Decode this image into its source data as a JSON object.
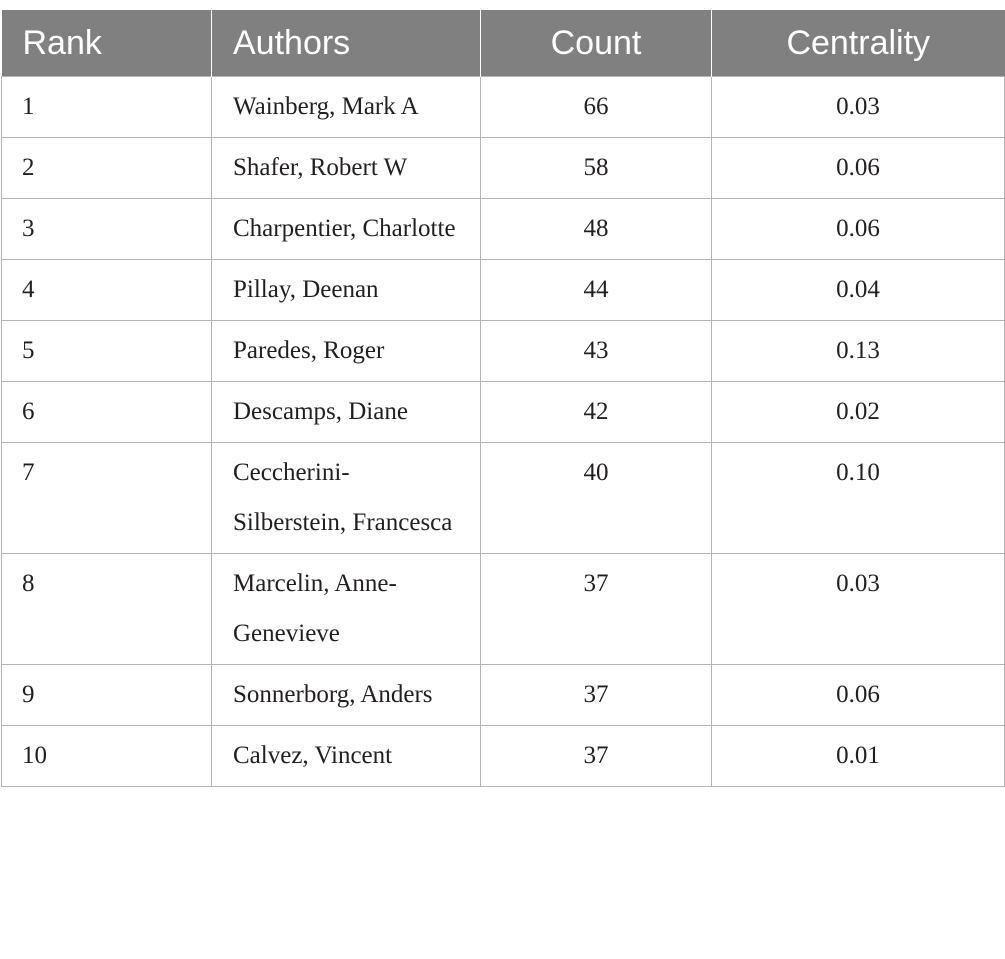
{
  "table": {
    "headers": [
      "Rank",
      "Authors",
      "Count",
      "Centrality"
    ],
    "rows": [
      {
        "rank": "1",
        "author": "Wainberg, Mark A",
        "count": "66",
        "centrality": "0.03"
      },
      {
        "rank": "2",
        "author": "Shafer, Robert W",
        "count": "58",
        "centrality": "0.06"
      },
      {
        "rank": "3",
        "author": "Charpentier, Charlotte",
        "count": "48",
        "centrality": "0.06"
      },
      {
        "rank": "4",
        "author": "Pillay, Deenan",
        "count": "44",
        "centrality": "0.04"
      },
      {
        "rank": "5",
        "author": "Paredes, Roger",
        "count": "43",
        "centrality": "0.13"
      },
      {
        "rank": "6",
        "author": "Descamps, Diane",
        "count": "42",
        "centrality": "0.02"
      },
      {
        "rank": "7",
        "author": "Ceccherini-Silberstein, Francesca",
        "count": "40",
        "centrality": "0.10"
      },
      {
        "rank": "8",
        "author": "Marcelin, Anne-Genevieve",
        "count": "37",
        "centrality": "0.03"
      },
      {
        "rank": "9",
        "author": "Sonnerborg, Anders",
        "count": "37",
        "centrality": "0.06"
      },
      {
        "rank": "10",
        "author": "Calvez, Vincent",
        "count": "37",
        "centrality": "0.01"
      }
    ]
  }
}
